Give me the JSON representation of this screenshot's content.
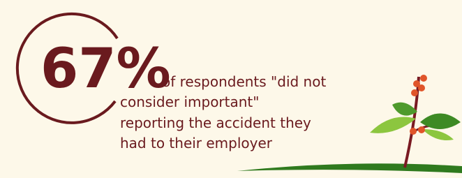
{
  "stat": {
    "figure": "67%",
    "lines": [
      "of respondents \"did not",
      "consider important\"",
      "reporting the accident they",
      "had to their employer"
    ]
  }
}
